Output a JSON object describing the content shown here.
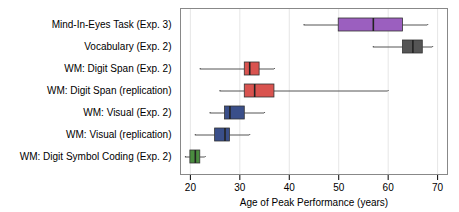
{
  "chart_data": {
    "type": "box",
    "orientation": "horizontal",
    "categories": [
      "Mind-In-Eyes Task (Exp. 3)",
      "Vocabulary (Exp. 2)",
      "WM: Digit Span (Exp. 2)",
      "WM: Digit Span (replication)",
      "WM: Visual (Exp. 2)",
      "WM: Visual (replication)",
      "WM: Digit Symbol Coding (Exp. 2)"
    ],
    "boxes": [
      {
        "whislo": 43,
        "q1": 50,
        "med": 57,
        "q3": 63,
        "whishi": 68
      },
      {
        "whislo": 57,
        "q1": 63,
        "med": 65,
        "q3": 67,
        "whishi": 69
      },
      {
        "whislo": 22,
        "q1": 31,
        "med": 32,
        "q3": 34,
        "whishi": 37
      },
      {
        "whislo": 26,
        "q1": 31,
        "med": 33,
        "q3": 37,
        "whishi": 60
      },
      {
        "whislo": 24,
        "q1": 27,
        "med": 28,
        "q3": 31,
        "whishi": 35
      },
      {
        "whislo": 21,
        "q1": 25,
        "med": 27,
        "q3": 28,
        "whishi": 32
      },
      {
        "whislo": 19,
        "q1": 20,
        "med": 21,
        "q3": 22,
        "whishi": 23
      }
    ],
    "colors": [
      "#9b5fbf",
      "#555555",
      "#d9534f",
      "#d9534f",
      "#3a4f8a",
      "#3a4f8a",
      "#4a8c3f"
    ],
    "xlabel": "Age of Peak Performance (years)",
    "xlim": [
      18,
      72
    ],
    "xticks": [
      20,
      30,
      40,
      50,
      60,
      70
    ],
    "grid": true
  }
}
